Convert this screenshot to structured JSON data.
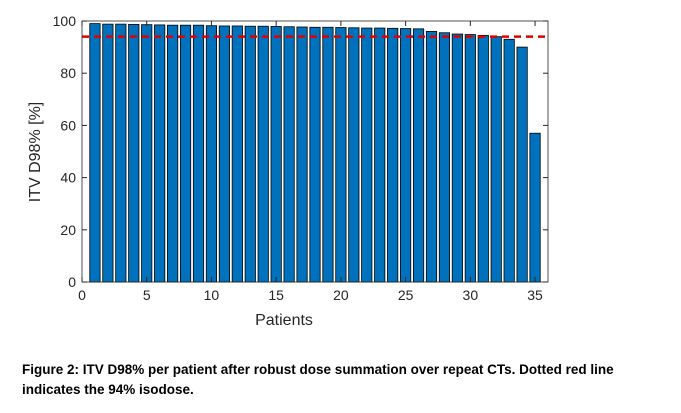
{
  "chart_data": {
    "type": "bar",
    "x": [
      1,
      2,
      3,
      4,
      5,
      6,
      7,
      8,
      9,
      10,
      11,
      12,
      13,
      14,
      15,
      16,
      17,
      18,
      19,
      20,
      21,
      22,
      23,
      24,
      25,
      26,
      27,
      28,
      29,
      30,
      31,
      32,
      33,
      34,
      35
    ],
    "values": [
      99,
      98.8,
      98.8,
      98.7,
      98.6,
      98.5,
      98.4,
      98.4,
      98.4,
      98.2,
      98.1,
      98.1,
      98,
      98,
      97.9,
      97.8,
      97.7,
      97.6,
      97.6,
      97.5,
      97.4,
      97.3,
      97.3,
      97.2,
      97.1,
      97,
      96,
      95.5,
      95,
      94.8,
      94.5,
      94,
      93,
      90,
      57
    ],
    "color": "#0072bd",
    "xlabel": "Patients",
    "ylabel": "ITV D98% [%]",
    "xlim": [
      0,
      36
    ],
    "xticks": [
      0,
      5,
      10,
      15,
      20,
      25,
      30,
      35
    ],
    "ylim": [
      0,
      100
    ],
    "yticks": [
      0,
      20,
      40,
      60,
      80,
      100
    ],
    "reference_line": {
      "value": 94,
      "color": "#e00000",
      "style": "dashed"
    }
  },
  "caption": "Figure 2: ITV D98% per patient after robust dose summation over repeat CTs. Dotted red line indicates the 94% isodose."
}
